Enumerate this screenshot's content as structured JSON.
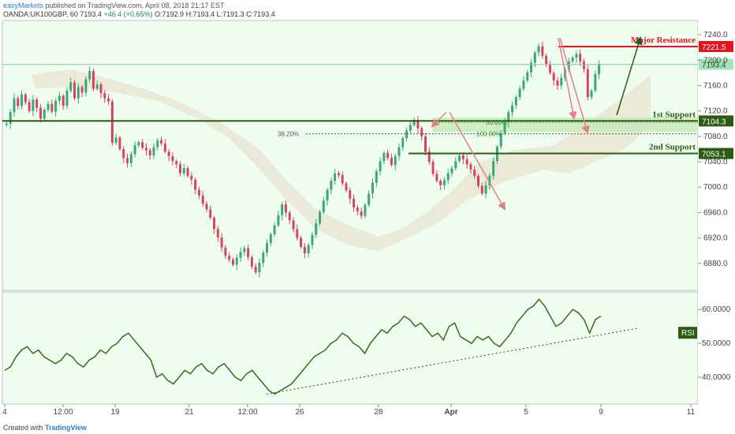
{
  "header": {
    "publisher": "easyMarkets",
    "published_text": "published on TradingView.com, April 08, 2018 21:17 EST",
    "symbol": "OANDA:UK100GBP, 60",
    "last": "7193.4",
    "change": "+46.4 (+0.65%)",
    "open": "O:7192.9",
    "high": "H:7193.4",
    "low": "L:7191.3",
    "close": "C:7193.4"
  },
  "footer": {
    "created_with": "Created with",
    "brand": "TradingView"
  },
  "colors": {
    "up": "#3aa774",
    "down": "#d9445a",
    "rsi": "#3c6a1b",
    "support": "#2a5d12",
    "resistance": "#e2141f",
    "arrow": "#e57f86"
  },
  "chart_data": [
    {
      "type": "candlestick",
      "ylim": [
        6845,
        7255
      ],
      "price_ticks": [
        "7240.0",
        "7200.0",
        "7160.0",
        "7120.0",
        "7080.0",
        "7040.0",
        "7000.0",
        "6960.0",
        "6920.0",
        "6880.0"
      ],
      "x_ticks": [
        "4",
        "12:00",
        "19",
        "21",
        "12:00",
        "26",
        "28",
        "Apr",
        "5",
        "9",
        "11"
      ],
      "closes": [
        7100,
        7118,
        7140,
        7128,
        7146,
        7134,
        7120,
        7138,
        7125,
        7108,
        7122,
        7131,
        7119,
        7136,
        7144,
        7128,
        7152,
        7165,
        7140,
        7158,
        7149,
        7170,
        7183,
        7155,
        7162,
        7148,
        7140,
        7135,
        7070,
        7078,
        7060,
        7046,
        7038,
        7052,
        7066,
        7071,
        7062,
        7058,
        7050,
        7063,
        7074,
        7069,
        7056,
        7049,
        7041,
        7036,
        7022,
        7030,
        7018,
        7012,
        6996,
        6987,
        6974,
        6965,
        6952,
        6934,
        6921,
        6905,
        6892,
        6886,
        6878,
        6889,
        6898,
        6904,
        6890,
        6875,
        6866,
        6881,
        6897,
        6912,
        6926,
        6940,
        6956,
        6973,
        6960,
        6948,
        6934,
        6920,
        6906,
        6896,
        6909,
        6925,
        6943,
        6961,
        6979,
        6996,
        7010,
        7022,
        7019,
        7006,
        6995,
        6982,
        6968,
        6962,
        6955,
        6972,
        6990,
        7007,
        7025,
        7041,
        7054,
        7046,
        7035,
        7049,
        7063,
        7077,
        7089,
        7098,
        7106,
        7093,
        7080,
        7056,
        7040,
        7021,
        7010,
        7003,
        7011,
        7022,
        7030,
        7041,
        7050,
        7044,
        7036,
        7028,
        7018,
        7002,
        6990,
        7003,
        7018,
        7041,
        7064,
        7085,
        7102,
        7118,
        7129,
        7142,
        7155,
        7168,
        7181,
        7196,
        7212,
        7222,
        7207,
        7193,
        7180,
        7168,
        7160,
        7172,
        7185,
        7198,
        7204,
        7210,
        7198,
        7186,
        7142,
        7152,
        7178,
        7193
      ],
      "levels": [
        {
          "name": "Major Resistance",
          "value": "7221.5"
        },
        {
          "name": "1st Support",
          "value": "7104.3"
        },
        {
          "name": "2nd Support",
          "value": "7053.1"
        },
        {
          "name": "last",
          "value": "7193.4"
        }
      ],
      "fib_labels": [
        "38.20%",
        "50.00%",
        "100.00%"
      ]
    },
    {
      "type": "line",
      "name": "RSI",
      "ylim": [
        33,
        64
      ],
      "ticks": [
        "60.0000",
        "50.0000",
        "40.0000"
      ],
      "values": [
        42,
        43,
        46,
        48,
        49,
        47,
        48,
        46,
        45,
        44,
        45,
        47,
        46,
        44,
        43,
        45,
        46,
        48,
        47,
        49,
        50,
        52,
        53,
        51,
        49,
        47,
        45,
        40,
        41,
        39,
        38,
        40,
        42,
        41,
        43,
        44,
        42,
        41,
        43,
        44,
        42,
        40,
        39,
        41,
        42,
        40,
        38,
        36,
        35,
        36,
        37,
        38,
        40,
        42,
        44,
        46,
        47,
        48,
        50,
        51,
        53,
        52,
        50,
        49,
        47,
        50,
        52,
        54,
        53,
        55,
        56,
        58,
        57,
        55,
        56,
        54,
        52,
        53,
        51,
        55,
        56,
        52,
        51,
        50,
        52,
        51,
        52,
        50,
        49,
        51,
        53,
        56,
        58,
        60,
        61,
        63,
        61,
        58,
        55,
        56,
        58,
        60,
        59,
        57,
        53,
        57,
        58
      ],
      "trendline_label": ""
    }
  ]
}
